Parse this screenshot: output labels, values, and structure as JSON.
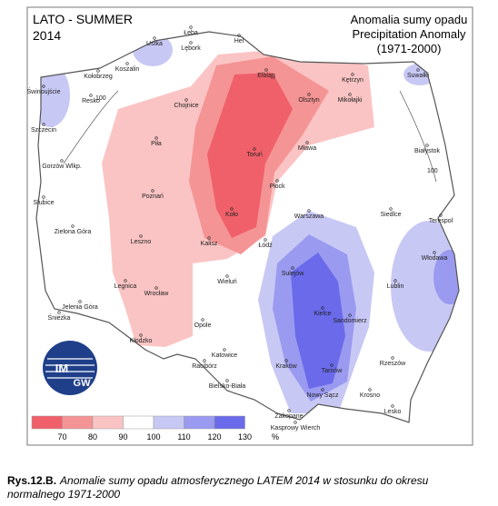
{
  "title": {
    "left": [
      "LATO - SUMMER",
      "2014"
    ],
    "right": [
      "Anomalia sumy opadu",
      "Precipitation Anomaly",
      "(1971-2000)"
    ]
  },
  "legend": {
    "labels": [
      "70",
      "80",
      "90",
      "100",
      "110",
      "120",
      "130",
      "%"
    ]
  },
  "contour_labels": [
    "100",
    "100"
  ],
  "logo": [
    "IM",
    "GW"
  ],
  "cities": [
    "Ustka",
    "Łeba",
    "Hel",
    "Lębork",
    "Koszalin",
    "Kołobrzeg",
    "Świnoujście",
    "Resko",
    "Szczecin",
    "Chojnice",
    "Elbląg",
    "Olsztyn",
    "Kętrzyn",
    "Mikołajki",
    "Suwałki",
    "Piła",
    "Toruń",
    "Mława",
    "Białystok",
    "Gorzów Wlkp.",
    "Płock",
    "Słubice",
    "Poznań",
    "Koło",
    "Warszawa",
    "Siedlce",
    "Terespol",
    "Zielona Góra",
    "Leszno",
    "Kalisz",
    "Łódź",
    "Włodawa",
    "Sulejów",
    "Wieluń",
    "Legnica",
    "Wrocław",
    "Lublin",
    "Jelenia Góra",
    "Śnieżka",
    "Kielce",
    "Sandomierz",
    "Opole",
    "Kłodzko",
    "Katowice",
    "Racibórz",
    "Kraków",
    "Rzeszów",
    "Tarnów",
    "Bielsko-Biała",
    "Krosno",
    "Nowy Sącz",
    "Lesko",
    "Zakopane",
    "Kasprowy Wierch"
  ],
  "caption": {
    "label": "Rys.12.B.",
    "text": "Anomalie  sumy opadu atmosferycznego LATEM 2014 w stosunku do okresu normalnego 1971-2000"
  }
}
